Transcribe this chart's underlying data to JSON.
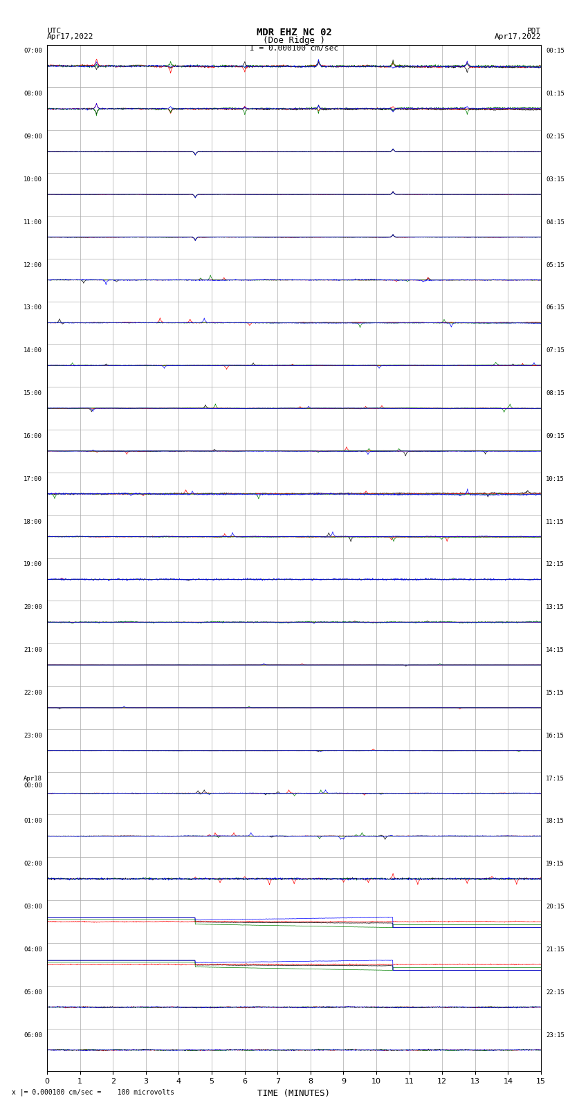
{
  "title_line1": "MDR EHZ NC 02",
  "title_line2": "(Doe Ridge )",
  "scale_text": "I = 0.000100 cm/sec",
  "utc_label": "UTC",
  "pdt_label": "PDT",
  "date_left": "Apr17,2022",
  "date_right": "Apr17,2022",
  "xlabel": "TIME (MINUTES)",
  "bottom_note": "x |= 0.000100 cm/sec =    100 microvolts",
  "xlim": [
    0,
    15
  ],
  "xticks": [
    0,
    1,
    2,
    3,
    4,
    5,
    6,
    7,
    8,
    9,
    10,
    11,
    12,
    13,
    14,
    15
  ],
  "fig_width": 8.5,
  "fig_height": 16.13,
  "bg_color": "#ffffff",
  "grid_color": "#aaaaaa",
  "num_rows": 24,
  "row_labels_left": [
    "07:00",
    "08:00",
    "09:00",
    "10:00",
    "11:00",
    "12:00",
    "13:00",
    "14:00",
    "15:00",
    "16:00",
    "17:00",
    "18:00",
    "19:00",
    "20:00",
    "21:00",
    "22:00",
    "23:00",
    "Apr18\n00:00",
    "01:00",
    "02:00",
    "03:00",
    "04:00",
    "05:00",
    "06:00"
  ],
  "row_labels_right": [
    "00:15",
    "01:15",
    "02:15",
    "03:15",
    "04:15",
    "05:15",
    "06:15",
    "07:15",
    "08:15",
    "09:15",
    "10:15",
    "11:15",
    "12:15",
    "13:15",
    "14:15",
    "15:15",
    "16:15",
    "17:15",
    "18:15",
    "19:15",
    "20:15",
    "21:15",
    "22:15",
    "23:15"
  ],
  "trace_colors": [
    "black",
    "red",
    "green",
    "blue"
  ],
  "seed": 42
}
